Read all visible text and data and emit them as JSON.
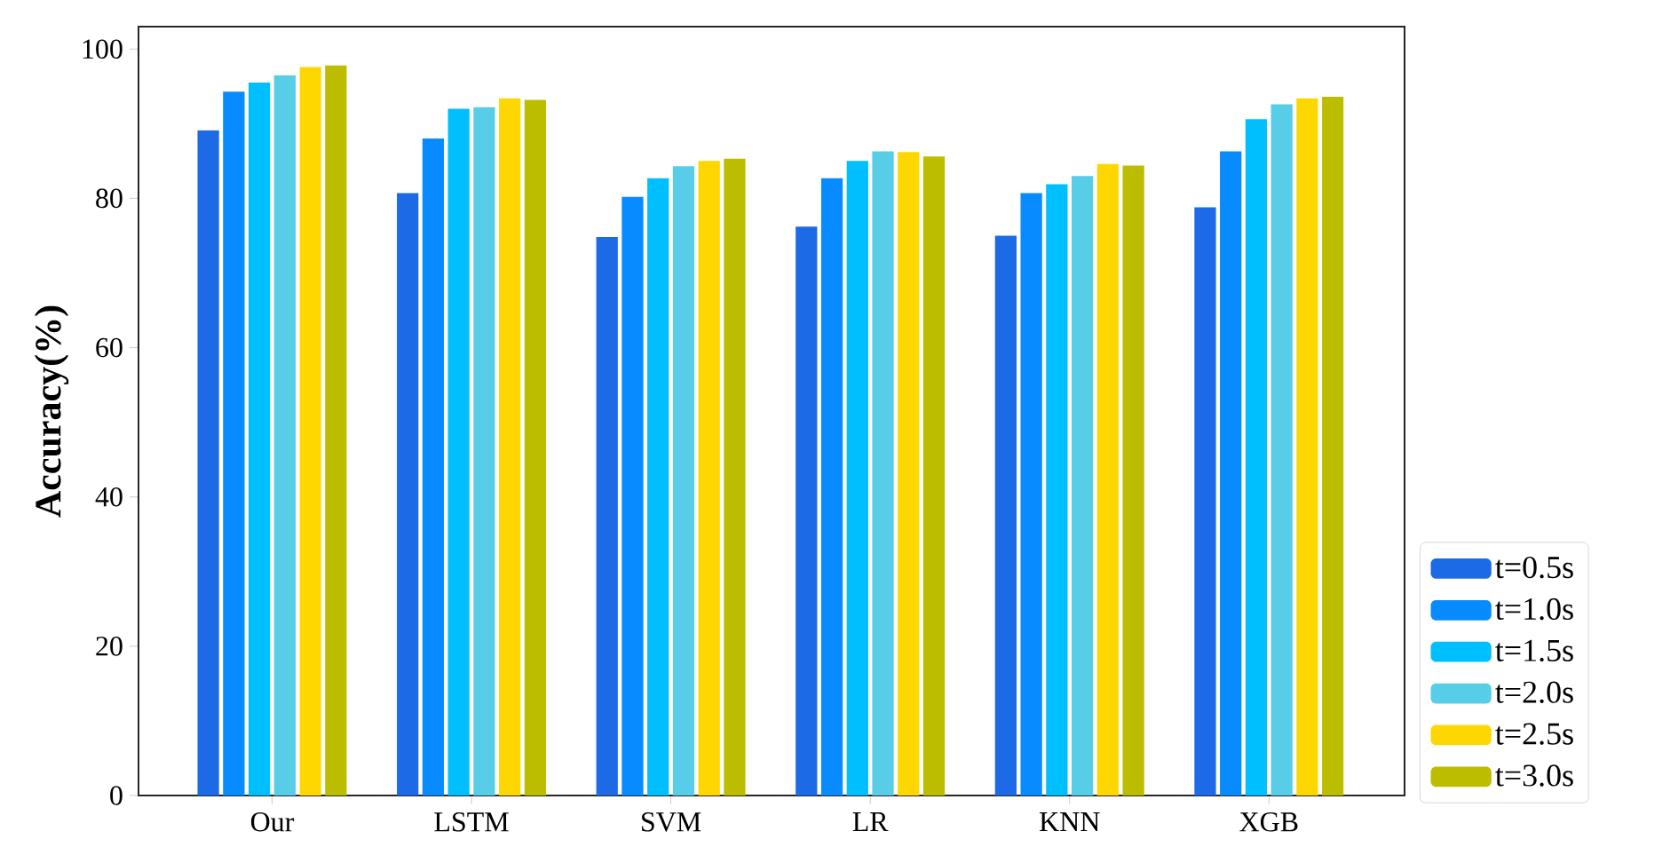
{
  "chart_data": {
    "type": "bar",
    "ylabel": "Accuracy(%)",
    "categories": [
      "Our",
      "LSTM",
      "SVM",
      "LR",
      "KNN",
      "XGB"
    ],
    "series": [
      {
        "name": "t=0.5s",
        "color": "#1c6ae6",
        "values": [
          89.1,
          80.7,
          74.8,
          76.2,
          75.0,
          78.8
        ]
      },
      {
        "name": "t=1.0s",
        "color": "#078bff",
        "values": [
          94.3,
          88.0,
          80.2,
          82.7,
          80.7,
          86.3
        ]
      },
      {
        "name": "t=1.5s",
        "color": "#00bfff",
        "values": [
          95.5,
          92.0,
          82.7,
          85.0,
          81.9,
          90.6
        ]
      },
      {
        "name": "t=2.0s",
        "color": "#57cde8",
        "values": [
          96.5,
          92.2,
          84.3,
          86.3,
          83.0,
          92.6
        ]
      },
      {
        "name": "t=2.5s",
        "color": "#ffd700",
        "values": [
          97.6,
          93.4,
          85.0,
          86.2,
          84.6,
          93.4
        ]
      },
      {
        "name": "t=3.0s",
        "color": "#bdbd00",
        "values": [
          97.8,
          93.2,
          85.3,
          85.6,
          84.4,
          93.6
        ]
      }
    ],
    "ylim": [
      0,
      103
    ],
    "yticks": [
      0,
      20,
      40,
      60,
      80,
      100
    ],
    "grid": false,
    "legend": "right"
  }
}
